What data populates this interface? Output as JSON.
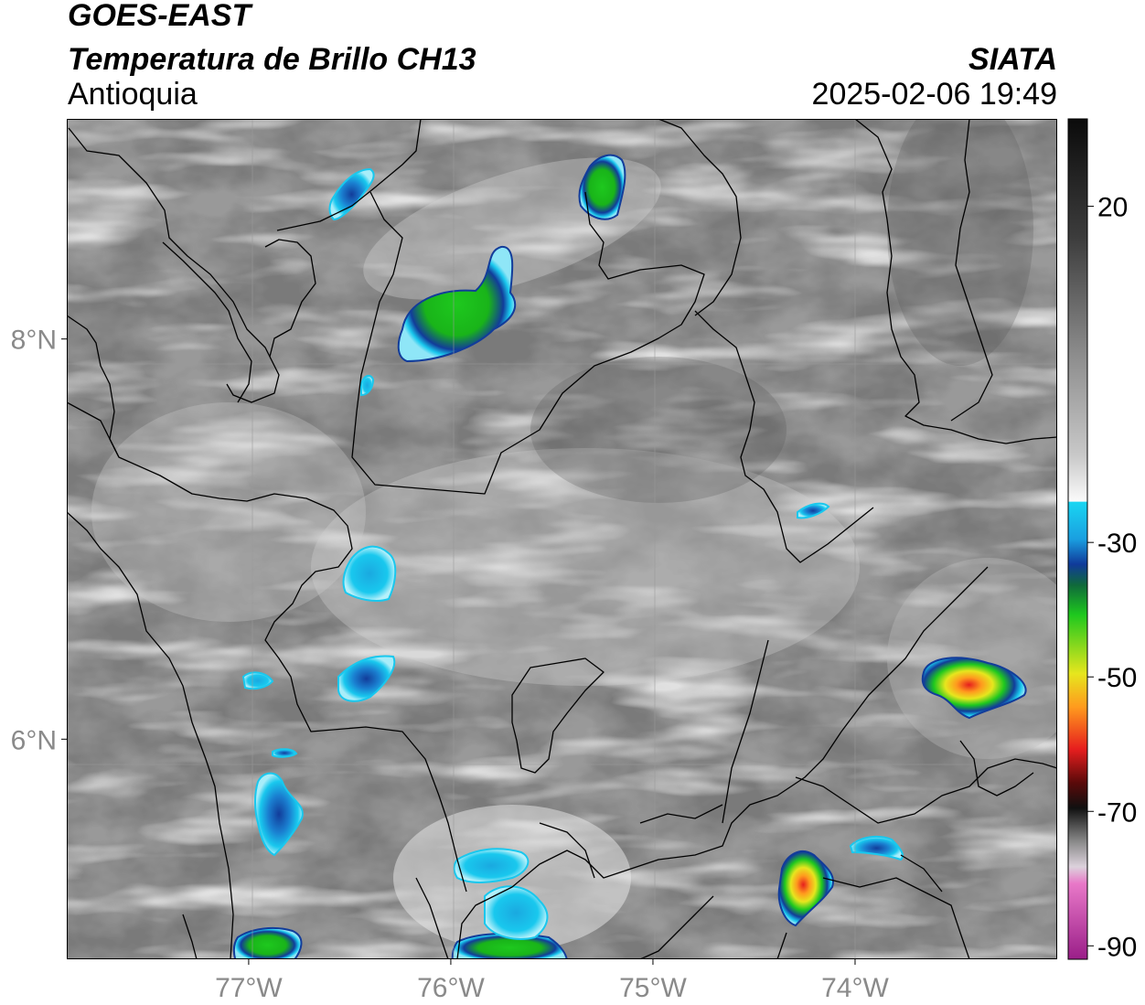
{
  "header": {
    "satellite": "GOES-EAST",
    "product": "Temperatura de Brillo CH13",
    "region": "Antioquia",
    "agency": "SIATA",
    "datetime": "2025-02-06 19:49"
  },
  "map": {
    "lon_range": [
      -77.9,
      -73.0
    ],
    "lat_range": [
      4.9,
      9.1
    ],
    "lon_ticks": [
      {
        "value": -77,
        "label": "77°W"
      },
      {
        "value": -76,
        "label": "76°W"
      },
      {
        "value": -75,
        "label": "75°W"
      },
      {
        "value": -74,
        "label": "74°W"
      }
    ],
    "lat_ticks": [
      {
        "value": 8,
        "label": "8°N"
      },
      {
        "value": 6,
        "label": "6°N"
      }
    ],
    "gridlines": true
  },
  "colorbar": {
    "units_range": [
      -92,
      33
    ],
    "tick_labels": [
      {
        "value": 20,
        "label": "20"
      },
      {
        "value": -30,
        "label": "-30"
      },
      {
        "value": -50,
        "label": "-50"
      },
      {
        "value": -70,
        "label": "-70"
      },
      {
        "value": -90,
        "label": "-90"
      }
    ],
    "colors": {
      "warm_top": "#111111",
      "neutral": "#7a7a7a",
      "cold_white": "#f4f4f4",
      "cyan": "#19c8ee",
      "blue": "#1a3a9c",
      "green": "#1ec81e",
      "yellow": "#e6e61e",
      "orange": "#ff9a1e",
      "red": "#e61e1e",
      "dark_red": "#5a0a0a",
      "pink": "#e060b0",
      "purple": "#a02090"
    }
  }
}
